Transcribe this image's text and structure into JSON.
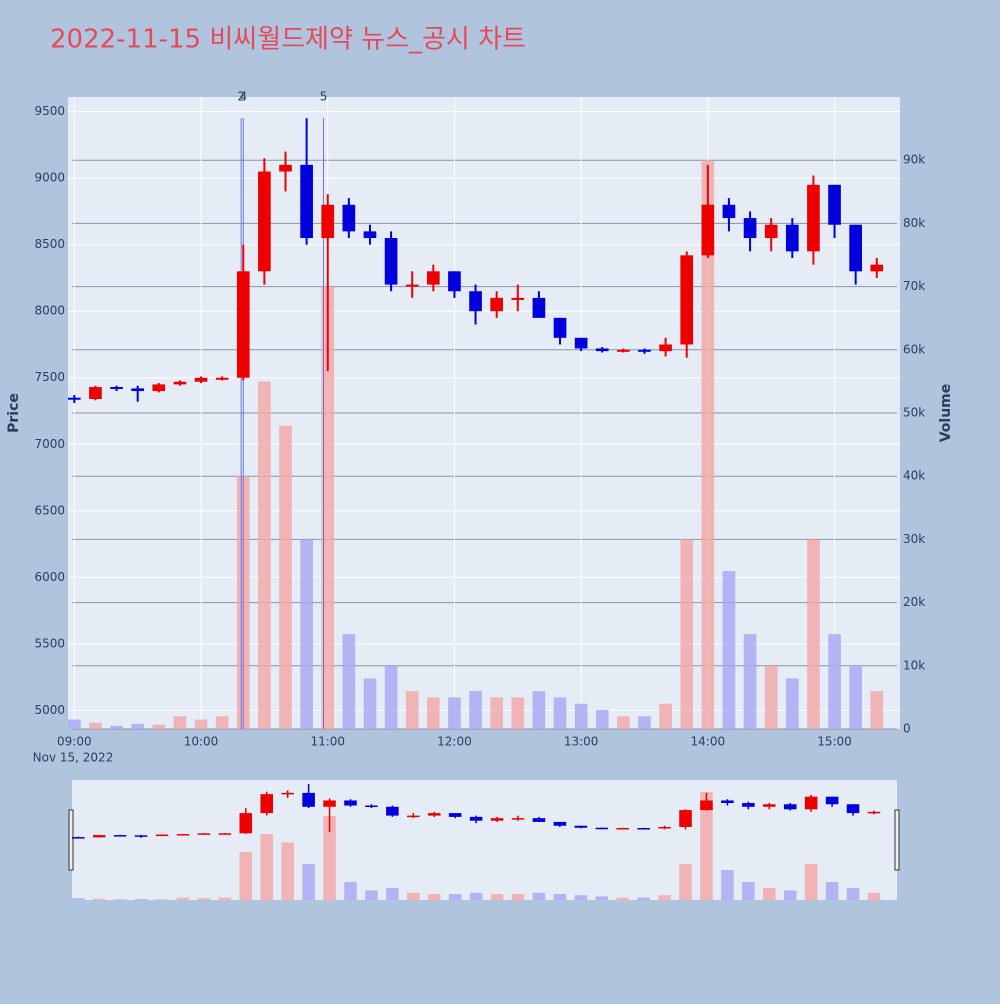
{
  "chart_data": {
    "type": "candlestick",
    "title": "2022-11-15 비씨월드제약 뉴스_공시 차트",
    "y_label": "Price",
    "y2_label": "Volume",
    "x_sublabel": "Nov 15, 2022",
    "up_color": "#ee0000",
    "down_color": "#0000dd",
    "volume_up_color": "#f4a6a6",
    "volume_down_color": "#a6a6f4",
    "x": [
      "09:00",
      "09:10",
      "09:20",
      "09:30",
      "09:40",
      "09:50",
      "10:00",
      "10:10",
      "10:20",
      "10:30",
      "10:40",
      "10:50",
      "11:00",
      "11:10",
      "11:20",
      "11:30",
      "11:40",
      "11:50",
      "12:00",
      "12:10",
      "12:20",
      "12:30",
      "12:40",
      "12:50",
      "13:00",
      "13:10",
      "13:20",
      "13:30",
      "13:40",
      "13:50",
      "14:00",
      "14:10",
      "14:20",
      "14:30",
      "14:40",
      "14:50",
      "15:00",
      "15:10",
      "15:20"
    ],
    "open": [
      7350,
      7340,
      7430,
      7420,
      7400,
      7450,
      7470,
      7500,
      7500,
      8300,
      9050,
      9100,
      8550,
      8800,
      8600,
      8550,
      8200,
      8200,
      8300,
      8150,
      8000,
      8100,
      8100,
      7950,
      7800,
      7720,
      7700,
      7710,
      7700,
      7750,
      8420,
      8800,
      8700,
      8550,
      8650,
      8450,
      8950,
      8650,
      8300
    ],
    "high": [
      7370,
      7440,
      7440,
      7440,
      7460,
      7480,
      7510,
      7510,
      8500,
      9150,
      9200,
      9450,
      8880,
      8850,
      8650,
      8600,
      8300,
      8350,
      8300,
      8200,
      8150,
      8200,
      8150,
      7950,
      7800,
      7730,
      7720,
      7720,
      7800,
      8450,
      9100,
      8850,
      8750,
      8700,
      8700,
      9020,
      8950,
      8650,
      8400
    ],
    "low": [
      7310,
      7330,
      7400,
      7320,
      7390,
      7440,
      7460,
      7480,
      7480,
      8200,
      8900,
      8500,
      7550,
      8550,
      8500,
      8150,
      8100,
      8150,
      8100,
      7900,
      7950,
      8000,
      7950,
      7750,
      7700,
      7690,
      7690,
      7680,
      7660,
      7650,
      8400,
      8600,
      8450,
      8450,
      8400,
      8350,
      8550,
      8200,
      8250
    ],
    "close": [
      7340,
      7430,
      7420,
      7400,
      7450,
      7470,
      7500,
      7500,
      8300,
      9050,
      9100,
      8550,
      8800,
      8600,
      8550,
      8200,
      8200,
      8300,
      8150,
      8000,
      8100,
      8100,
      7950,
      7800,
      7720,
      7700,
      7710,
      7700,
      7750,
      8420,
      8800,
      8700,
      8550,
      8650,
      8450,
      8950,
      8650,
      8300,
      8350
    ],
    "volume": [
      1500,
      1000,
      500,
      800,
      700,
      2000,
      1500,
      2000,
      40000,
      55000,
      48000,
      30000,
      70000,
      15000,
      8000,
      10000,
      6000,
      5000,
      5000,
      6000,
      5000,
      5000,
      6000,
      5000,
      4000,
      3000,
      2000,
      2000,
      4000,
      30000,
      90000,
      25000,
      15000,
      10000,
      8000,
      30000,
      15000,
      10000,
      6000
    ],
    "annotations": [
      {
        "x": "10:19",
        "text": "2"
      },
      {
        "x": "10:20",
        "text": "4"
      },
      {
        "x": "10:58",
        "text": "5"
      }
    ],
    "xlim": [
      "08:57",
      "15:31"
    ],
    "xticks": [
      "09:00",
      "10:00",
      "11:00",
      "12:00",
      "13:00",
      "14:00",
      "15:00"
    ],
    "ylim": [
      4860,
      9610
    ],
    "yticks": [
      5000,
      5500,
      6000,
      6500,
      7000,
      7500,
      8000,
      8500,
      9000,
      9500
    ],
    "y2lim": [
      0,
      100000
    ],
    "y2ticks": [
      {
        "value": 0,
        "label": "0"
      },
      {
        "value": 10000,
        "label": "10k"
      },
      {
        "value": 20000,
        "label": "20k"
      },
      {
        "value": 30000,
        "label": "30k"
      },
      {
        "value": 40000,
        "label": "40k"
      },
      {
        "value": 50000,
        "label": "50k"
      },
      {
        "value": 60000,
        "label": "60k"
      },
      {
        "value": 70000,
        "label": "70k"
      },
      {
        "value": 80000,
        "label": "80k"
      },
      {
        "value": 90000,
        "label": "90k"
      }
    ]
  }
}
